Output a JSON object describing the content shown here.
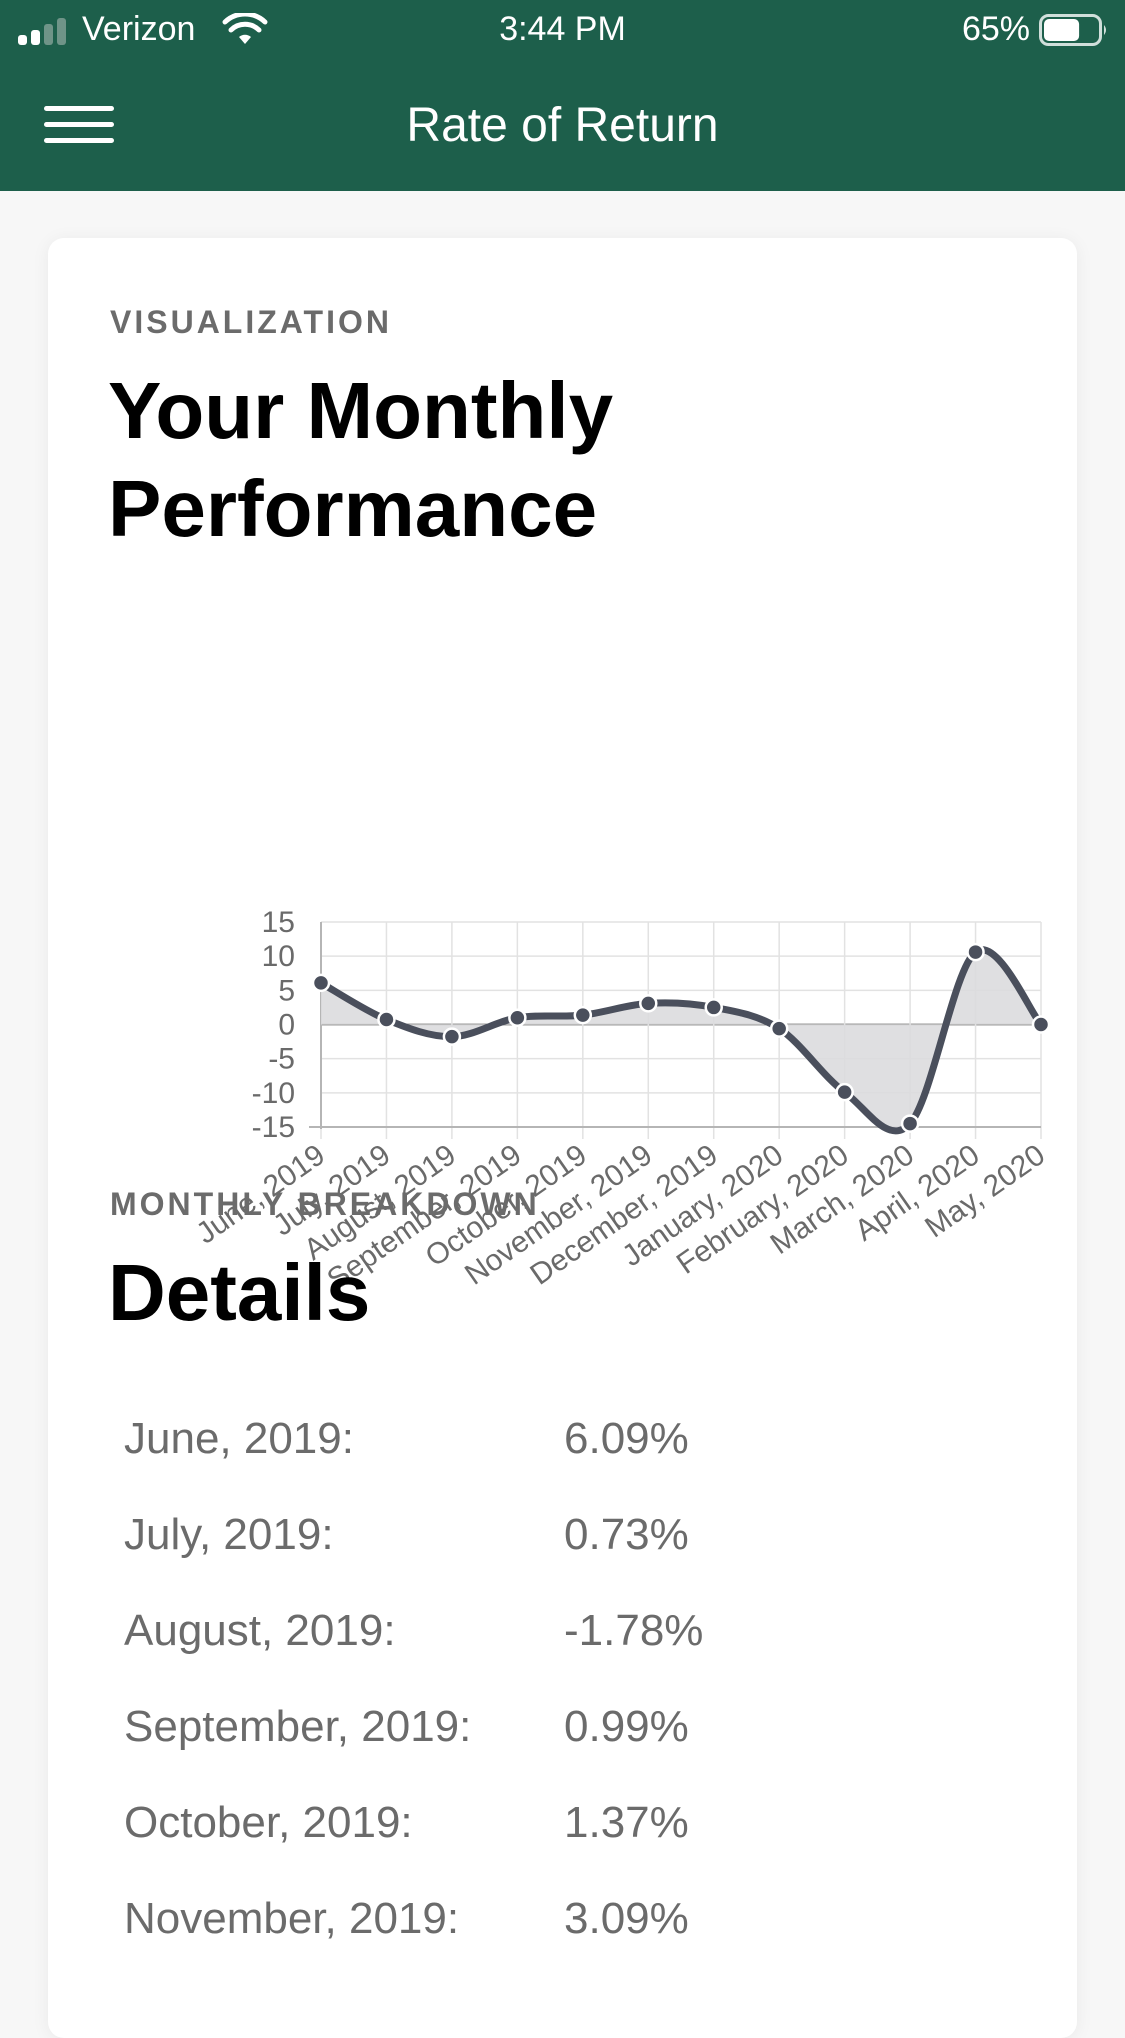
{
  "status_bar": {
    "carrier": "Verizon",
    "time": "3:44 PM",
    "battery": "65%",
    "battery_level": 0.65
  },
  "nav": {
    "title": "Rate of Return",
    "menu_icon": "hamburger-icon"
  },
  "visualization": {
    "eyebrow": "VISUALIZATION",
    "title_line1": "Your Monthly",
    "title_line2": "Performance"
  },
  "chart_data": {
    "type": "area",
    "categories": [
      "June, 2019",
      "July, 2019",
      "August, 2019",
      "September, 2019",
      "October, 2019",
      "November, 2019",
      "December, 2019",
      "January, 2020",
      "February, 2020",
      "March, 2020",
      "April, 2020",
      "May, 2020"
    ],
    "series": [
      {
        "values": [
          6.09,
          0.73,
          -1.78,
          0.99,
          1.37,
          3.09,
          2.5,
          -0.6,
          -9.9,
          -14.5,
          10.6,
          0
        ]
      }
    ],
    "yticks": [
      15,
      10,
      5,
      0,
      -5,
      -10,
      -15
    ],
    "ylim": [
      -15,
      15
    ],
    "grid": true,
    "line_color": "#4a4f5c",
    "fill_color": "#dcdcde"
  },
  "breakdown": {
    "eyebrow": "MONTHLY BREAKDOWN",
    "title": "Details",
    "rows": [
      {
        "month": "June, 2019:",
        "value": "6.09%"
      },
      {
        "month": "July, 2019:",
        "value": "0.73%"
      },
      {
        "month": "August, 2019:",
        "value": "-1.78%"
      },
      {
        "month": "September, 2019:",
        "value": "0.99%"
      },
      {
        "month": "October, 2019:",
        "value": "1.37%"
      },
      {
        "month": "November, 2019:",
        "value": "3.09%"
      }
    ]
  },
  "colors": {
    "brand": "#1d5f4b",
    "heading": "#000000",
    "muted_text": "#6b6b6b"
  }
}
